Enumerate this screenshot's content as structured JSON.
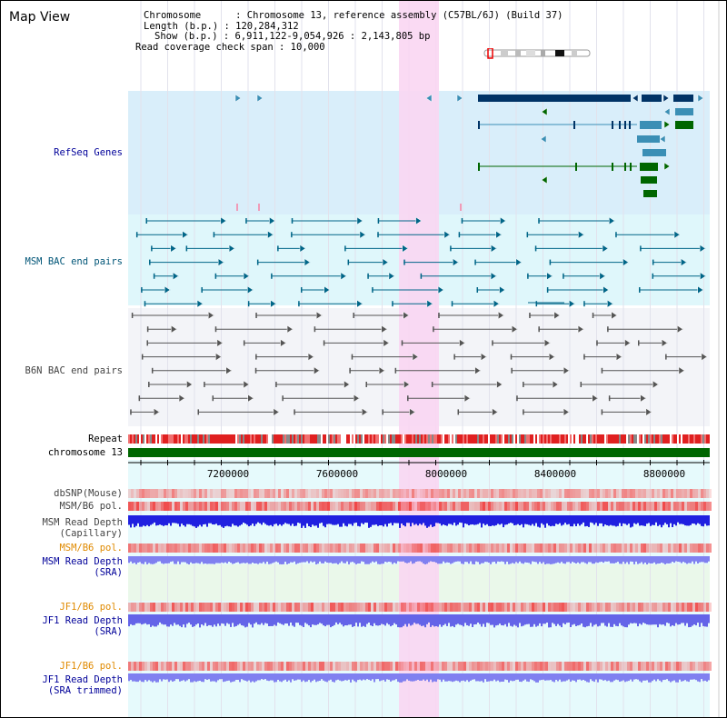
{
  "title": "Map View",
  "info": {
    "chromosome": "Chromosome      : Chromosome 13, reference assembly (C57BL/6J) (Build 37)",
    "length": "Length (b.p.) : 120,284,312",
    "show": "Show (b.p.) : 6,911,122-9,054,926 : 2,143,805 bp",
    "coverage": "Read coverage check span : 10,000"
  },
  "tracks": {
    "refseq": "RefSeq Genes",
    "msm_bac": "MSM BAC end pairs",
    "b6n_bac": "B6N BAC end pairs",
    "repeat": "Repeat",
    "chrom": "chromosome 13",
    "dbsnp": "dbSNP(Mouse)",
    "msm_b6_pol": "MSM/B6 pol.",
    "msm_depth_cap_1": "MSM Read Depth",
    "msm_depth_cap_2": "(Capillary)",
    "msm_b6_pol_sra": "MSM/B6 pol.",
    "msm_depth_sra_1": "MSM Read Depth",
    "msm_depth_sra_2": "(SRA)",
    "jf1_b6_pol": "JF1/B6 pol.",
    "jf1_depth_sra_1": "JF1 Read Depth",
    "jf1_depth_sra_2": "(SRA)",
    "jf1_b6_pol_trim": "JF1/B6 pol.",
    "jf1_depth_trim_1": "JF1 Read Depth",
    "jf1_depth_trim_2": "(SRA trimmed)"
  },
  "axis": {
    "ticks": [
      "7200000",
      "7600000",
      "8000000",
      "8400000",
      "8800000"
    ]
  },
  "colors": {
    "highlight": "#f9d6f2",
    "refseq_bg": "#d9eefa",
    "msm_bg": "#dff7fb",
    "b6n_bg": "#f3f4f8",
    "gene_dark": "#003366",
    "gene_mid": "#3b8fb5",
    "gene_green": "#006600",
    "msm_feature": "#006688",
    "b6n_feature": "#555555",
    "chrom_bar": "#006600",
    "pol_red": "#f05050",
    "depth_blue": "#2020e0",
    "depth_light": "#8080f0"
  }
}
